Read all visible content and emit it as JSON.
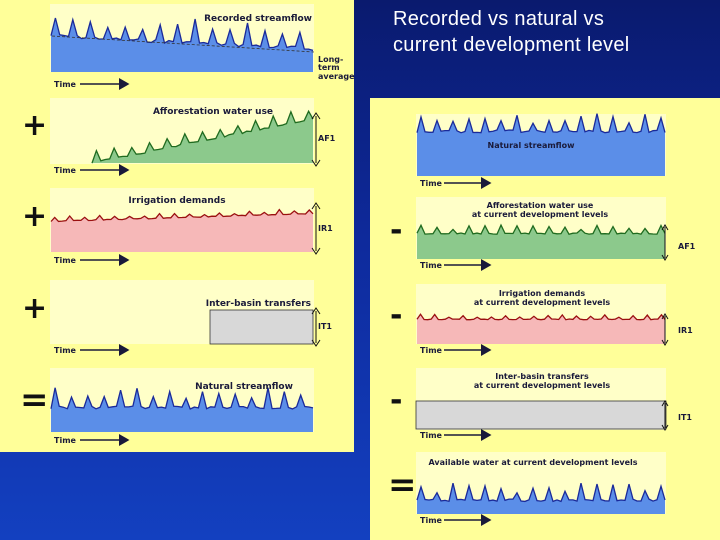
{
  "title_line1": "Recorded vs natural vs",
  "title_line2": "current development level",
  "left": {
    "recorded_label": "Recorded streamflow",
    "long_term_1": "Long-",
    "long_term_2": "term",
    "long_term_3": "average",
    "afforestation_label": "Afforestation water use",
    "af_marker": "AF1",
    "irrigation_label": "Irrigation demands",
    "ir_marker": "IR1",
    "transfers_label": "Inter-basin transfers",
    "it_marker": "IT1",
    "natural_label": "Natural streamflow",
    "time_label": "Time",
    "plus": "+",
    "equals": "="
  },
  "right": {
    "natural_label": "Natural streamflow",
    "aff_line1": "Afforestation water use",
    "aff_line2": "at current development levels",
    "af_marker": "AF1",
    "irr_line1": "Irrigation demands",
    "irr_line2": "at current development levels",
    "ir_marker": "IR1",
    "tr_line1": "Inter-basin transfers",
    "tr_line2": "at current development levels",
    "it_marker": "IT1",
    "avail_label": "Available water at current development levels",
    "time_label": "Time",
    "minus": "-",
    "equals": "="
  },
  "colors": {
    "panel_bg": "#ffffc8",
    "stream_blue": "#5b8ee8",
    "stream_line": "#1a2a9a",
    "aff_green": "#8cc98c",
    "aff_line": "#1f6b1f",
    "irr_pink": "#f6b8b8",
    "irr_line": "#9a1010",
    "transfer_grey": "#d8d8d8"
  }
}
